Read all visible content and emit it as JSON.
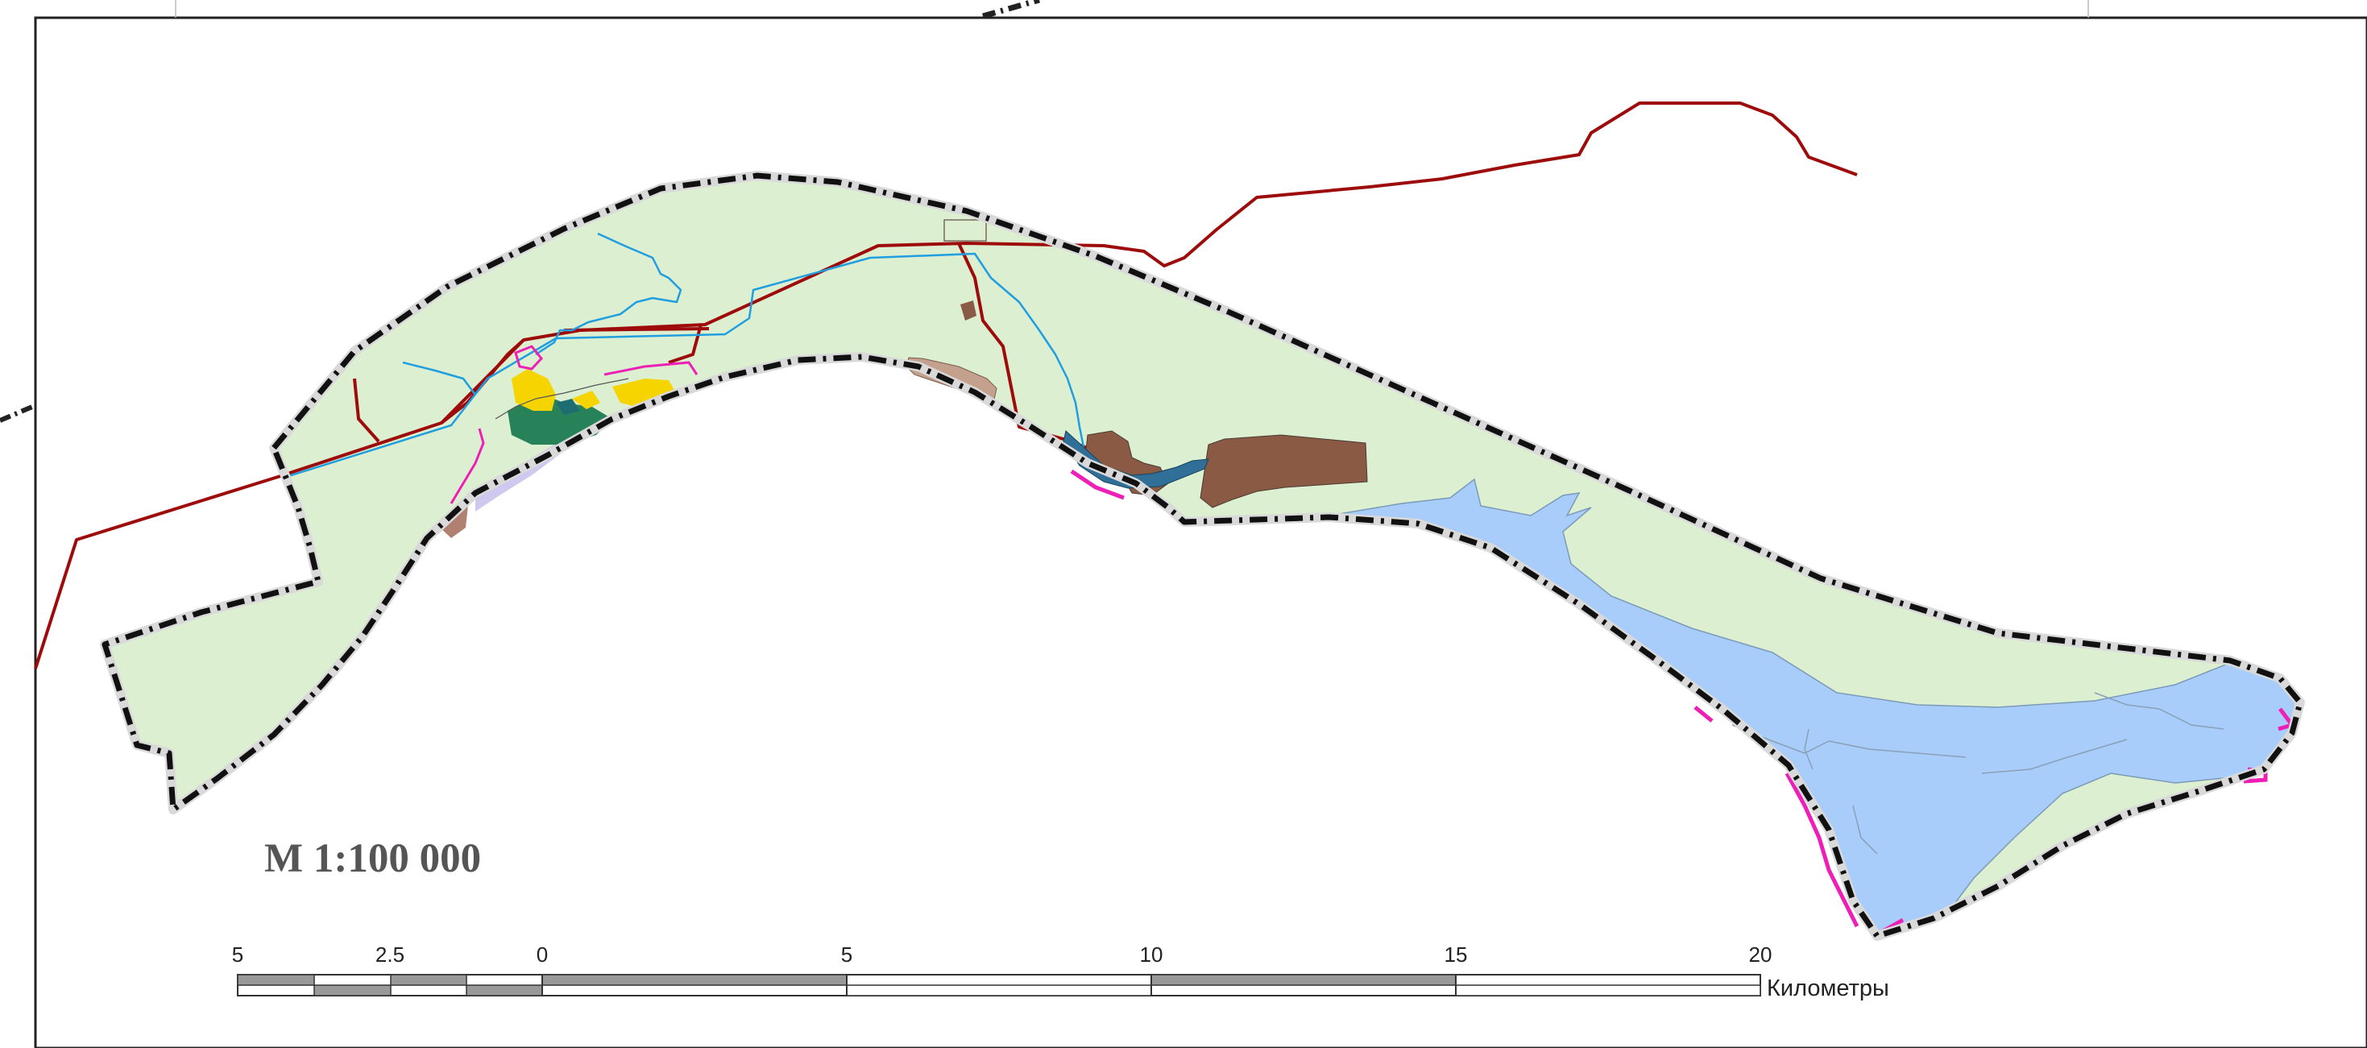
{
  "map": {
    "scale_label": "М 1:100 000",
    "unit_label": "Километры",
    "scale_ticks": [
      "5",
      "2.5",
      "0",
      "5",
      "10",
      "15",
      "20"
    ],
    "colors": {
      "territory_fill": "#dcefd1",
      "water_fill": "#a9cdfa",
      "boundary": "#111111",
      "boundary_dots": "#d9d9d9",
      "road": "#9e0b0b",
      "river": "#1f9ee0",
      "industrial": "#8a5a44",
      "industrial_light": "#c4a08e",
      "settlement_yellow": "#f5d400",
      "settlement_green": "#27825a",
      "settlement_lilac": "#cfc8ef",
      "edge_magenta": "#ee1fb6"
    }
  }
}
